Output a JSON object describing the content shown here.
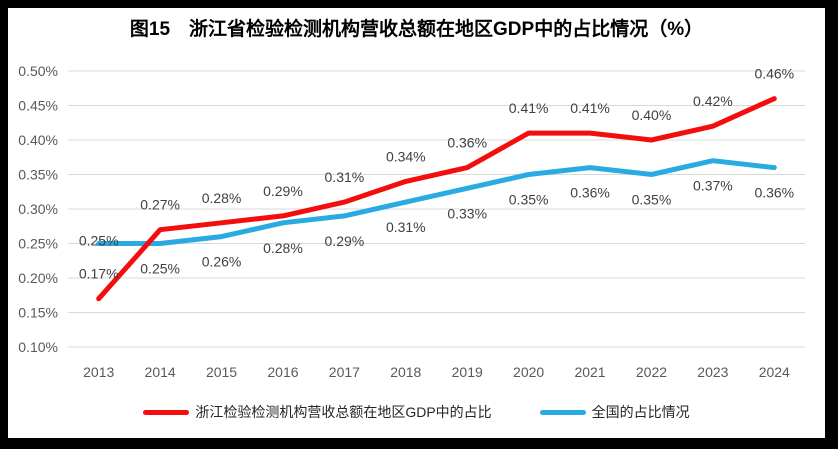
{
  "palette": {
    "background": "#FFFFFF",
    "frame": "#000000",
    "grid": "#D9D9D9",
    "axis_labels": "#595959",
    "data_labels": "#404040",
    "title_text": "#000000",
    "legend_text": "#262626"
  },
  "chart_data": {
    "type": "line",
    "title": "图15　浙江省检验检测机构营收总额在地区GDP中的占比情况（%）",
    "categories": [
      "2013",
      "2014",
      "2015",
      "2016",
      "2017",
      "2018",
      "2019",
      "2020",
      "2021",
      "2022",
      "2023",
      "2024"
    ],
    "series": [
      {
        "name": "浙江检验检测机构营收总额在地区GDP中的占比",
        "color": "#F40D0D",
        "values": [
          0.17,
          0.27,
          0.28,
          0.29,
          0.31,
          0.34,
          0.36,
          0.41,
          0.41,
          0.4,
          0.42,
          0.46
        ],
        "labels": [
          "0.17%",
          "0.27%",
          "0.28%",
          "0.29%",
          "0.31%",
          "0.34%",
          "0.36%",
          "0.41%",
          "0.41%",
          "0.40%",
          "0.42%",
          "0.46%"
        ],
        "label_position": "above"
      },
      {
        "name": "全国的占比情况",
        "color": "#29ABE2",
        "values": [
          0.25,
          0.25,
          0.26,
          0.28,
          0.29,
          0.31,
          0.33,
          0.35,
          0.36,
          0.35,
          0.37,
          0.36
        ],
        "labels": [
          "0.25%",
          "0.25%",
          "0.26%",
          "0.28%",
          "0.29%",
          "0.31%",
          "0.33%",
          "0.35%",
          "0.36%",
          "0.35%",
          "0.37%",
          "0.36%"
        ],
        "label_position": "below",
        "label_position_overrides": {
          "0": "above-on-line"
        }
      }
    ],
    "xlabel": "",
    "ylabel": "",
    "ylim": [
      0.1,
      0.5
    ],
    "ytick_step": 0.05,
    "yticks": [
      "0.10%",
      "0.15%",
      "0.20%",
      "0.25%",
      "0.30%",
      "0.35%",
      "0.40%",
      "0.45%",
      "0.50%"
    ],
    "grid": true,
    "legend_position": "bottom"
  }
}
